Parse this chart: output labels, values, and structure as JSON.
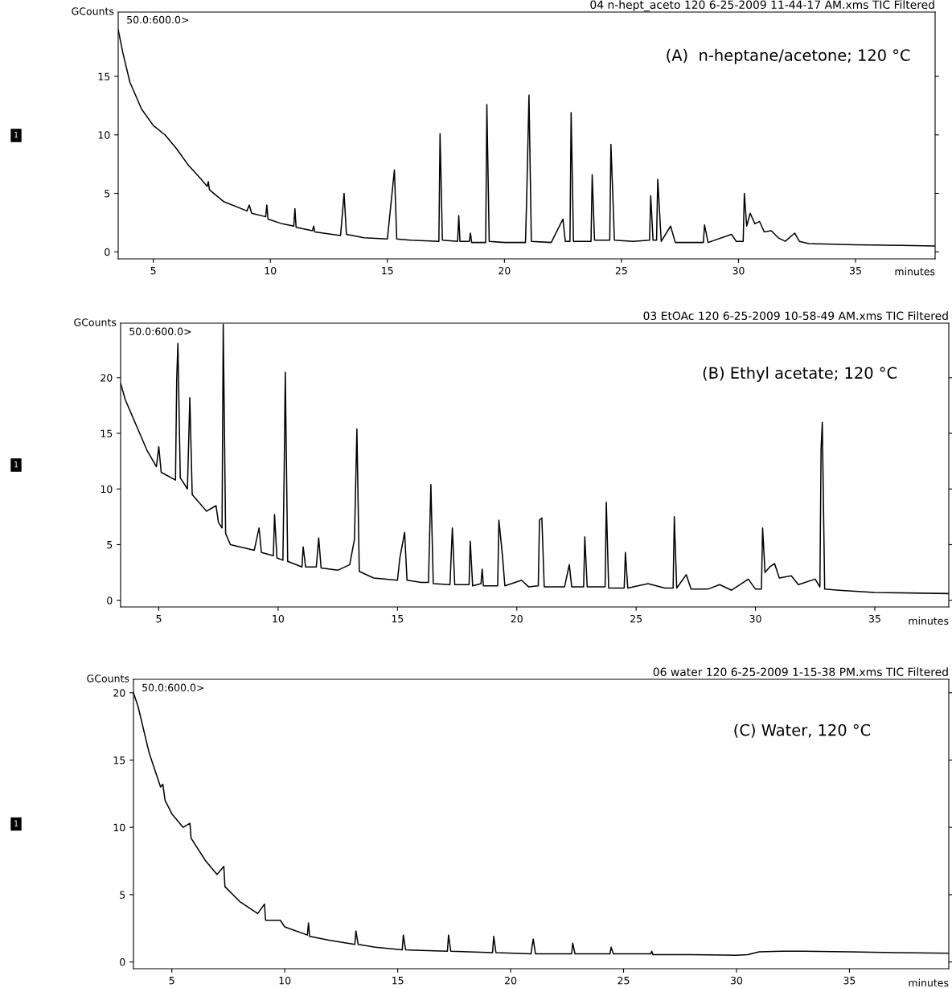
{
  "chart_data": [
    {
      "type": "line",
      "title": "04 n-hept_aceto 120 6-25-2009 11-44-17 AM.xms TIC Filtered",
      "xlabel": "minutes",
      "ylabel": "GCounts",
      "annotations": [
        "50.0:600.0>",
        "(A)  n-heptane/acetone; 120 °C",
        "1"
      ],
      "color": "#000000",
      "xlim": [
        3.5,
        38.4
      ],
      "ylim": [
        -0.6,
        20.5
      ],
      "xticks": [
        5,
        10,
        15,
        20,
        25,
        30,
        35
      ],
      "yticks": [
        0,
        5,
        10,
        15
      ],
      "x": [
        3.5,
        3.7,
        4,
        4.5,
        5,
        5.5,
        6,
        6.5,
        7,
        7.3,
        7.35,
        7.4,
        8,
        9,
        9.1,
        9.2,
        9.8,
        9.85,
        9.9,
        10.5,
        11,
        11.05,
        11.1,
        11.8,
        11.85,
        11.9,
        13,
        13.15,
        13.25,
        14,
        15,
        15.3,
        15.4,
        16,
        17.2,
        17.25,
        17.35,
        18,
        18.05,
        18.1,
        18.5,
        18.55,
        18.6,
        19.2,
        19.25,
        19.35,
        20,
        20.9,
        20.95,
        21.05,
        21.15,
        22,
        22.5,
        22.6,
        22.8,
        22.85,
        22.95,
        23.7,
        23.75,
        23.85,
        24.5,
        24.55,
        24.7,
        25.5,
        26.2,
        26.25,
        26.35,
        26.5,
        26.55,
        26.7,
        27.1,
        27.3,
        28.5,
        28.55,
        28.7,
        29.7,
        29.9,
        30.2,
        30.25,
        30.35,
        30.5,
        30.7,
        30.9,
        31.1,
        31.4,
        31.7,
        32,
        32.4,
        32.6,
        33,
        35,
        37,
        38.4
      ],
      "values": [
        19,
        17,
        14.5,
        12.2,
        10.8,
        10,
        8.8,
        7.4,
        6.3,
        5.6,
        6.0,
        5.3,
        4.3,
        3.5,
        4.0,
        3.3,
        3.0,
        4.0,
        2.8,
        2.4,
        2.2,
        3.7,
        2.1,
        1.8,
        2.2,
        1.7,
        1.4,
        5.0,
        1.5,
        1.2,
        1.1,
        7.0,
        1.1,
        1.0,
        0.9,
        10.1,
        1.0,
        0.9,
        3.1,
        0.9,
        0.9,
        1.6,
        0.8,
        0.8,
        12.6,
        0.9,
        0.8,
        0.8,
        4.5,
        13.4,
        0.9,
        0.8,
        2.8,
        0.9,
        0.9,
        11.9,
        0.9,
        0.9,
        6.6,
        1.0,
        1.0,
        9.2,
        1.0,
        0.9,
        1.0,
        4.8,
        1.0,
        1.0,
        6.2,
        0.9,
        2.2,
        0.8,
        0.8,
        2.3,
        0.8,
        1.5,
        0.9,
        0.9,
        5.0,
        2.2,
        3.3,
        2.4,
        2.6,
        1.7,
        1.8,
        1.2,
        0.9,
        1.6,
        0.9,
        0.7,
        0.6,
        0.55,
        0.5
      ]
    },
    {
      "type": "line",
      "title": "03 EtOAc 120 6-25-2009 10-58-49 AM.xms TIC Filtered",
      "xlabel": "minutes",
      "ylabel": "GCounts",
      "annotations": [
        "50.0:600.0>",
        "(B) Ethyl acetate; 120 °C",
        "1"
      ],
      "color": "#000000",
      "xlim": [
        3.4,
        38.1
      ],
      "ylim": [
        -0.6,
        24.9
      ],
      "xticks": [
        5,
        10,
        15,
        20,
        25,
        30,
        35
      ],
      "yticks": [
        0,
        5,
        10,
        15,
        20
      ],
      "x": [
        3.4,
        3.6,
        4,
        4.5,
        4.9,
        5.0,
        5.1,
        5.7,
        5.75,
        5.8,
        5.9,
        6.2,
        6.3,
        6.4,
        7,
        7.4,
        7.5,
        7.65,
        7.7,
        7.8,
        8,
        9,
        9.2,
        9.3,
        9.8,
        9.85,
        9.95,
        10.2,
        10.25,
        10.3,
        10.4,
        11,
        11.05,
        11.15,
        11.6,
        11.7,
        11.8,
        12.5,
        13,
        13.2,
        13.3,
        13.4,
        14,
        15,
        15.1,
        15.3,
        15.4,
        16,
        16.3,
        16.4,
        16.5,
        17.2,
        17.3,
        17.4,
        18,
        18.05,
        18.15,
        18.5,
        18.55,
        18.6,
        19.2,
        19.25,
        19.4,
        19.5,
        20.2,
        20.5,
        20.9,
        20.95,
        21.05,
        21.15,
        22,
        22.2,
        22.3,
        22.8,
        22.85,
        22.95,
        23.7,
        23.75,
        23.85,
        24.5,
        24.55,
        24.65,
        25.5,
        26.2,
        26.55,
        26.6,
        26.7,
        27.1,
        27.3,
        28,
        28.5,
        29,
        29.7,
        30,
        30.25,
        30.3,
        30.4,
        30.6,
        30.8,
        31,
        31.5,
        31.8,
        32.5,
        32.7,
        32.75,
        32.8,
        32.9,
        33.5,
        35,
        38.1
      ],
      "values": [
        19.5,
        18,
        16,
        13.5,
        12,
        13.8,
        11.5,
        10.8,
        19.8,
        23.1,
        11,
        10,
        18.2,
        9.5,
        8,
        8.5,
        7,
        6.5,
        24.8,
        6,
        5,
        4.5,
        6.5,
        4.3,
        4,
        7.7,
        3.8,
        3.6,
        11,
        20.5,
        3.5,
        3,
        4.8,
        3,
        3,
        5.6,
        2.9,
        2.7,
        3.2,
        5.5,
        15.4,
        2.6,
        2,
        1.8,
        3.8,
        6.1,
        1.8,
        1.6,
        1.6,
        10.4,
        1.5,
        1.4,
        6.5,
        1.4,
        1.4,
        5.3,
        1.3,
        1.5,
        2.8,
        1.3,
        1.3,
        7.2,
        4,
        1.3,
        1.8,
        1.2,
        1.3,
        7.2,
        7.4,
        1.2,
        1.2,
        3.2,
        1.2,
        1.2,
        5.7,
        1.2,
        1.2,
        8.8,
        1.1,
        1.1,
        4.3,
        1.1,
        1.5,
        1.1,
        1.1,
        7.5,
        1.1,
        2.3,
        1.0,
        1.0,
        1.4,
        0.9,
        1.9,
        1.0,
        1.0,
        6.5,
        2.5,
        3.0,
        3.3,
        2.0,
        2.2,
        1.4,
        1.9,
        1.2,
        13.7,
        16.0,
        1.0,
        0.9,
        0.7,
        0.6
      ]
    },
    {
      "type": "line",
      "title": "06 water 120 6-25-2009 1-15-38 PM.xms TIC Filtered",
      "xlabel": "minutes",
      "ylabel": "GCounts",
      "annotations": [
        "50.0:600.0>",
        "(C) Water, 120 °C",
        "1"
      ],
      "color": "#000000",
      "xlim": [
        3.3,
        39.4
      ],
      "ylim": [
        -0.5,
        21
      ],
      "xticks": [
        5,
        10,
        15,
        20,
        25,
        30,
        35
      ],
      "yticks": [
        0,
        5,
        10,
        15,
        20
      ],
      "x": [
        3.3,
        3.5,
        4,
        4.5,
        4.6,
        4.7,
        5,
        5.5,
        5.8,
        5.85,
        6.5,
        7,
        7.3,
        7.35,
        8,
        8.8,
        9.1,
        9.15,
        9.6,
        9.8,
        10,
        11,
        11.05,
        11.1,
        12,
        13.1,
        13.15,
        13.25,
        14,
        15.2,
        15.25,
        15.35,
        17.2,
        17.25,
        17.35,
        19.2,
        19.25,
        19.35,
        20.9,
        21,
        21.1,
        22.7,
        22.75,
        22.85,
        24.4,
        24.45,
        24.55,
        26.2,
        26.25,
        26.3,
        28,
        30,
        30.5,
        31,
        32,
        33,
        35,
        37,
        39.4
      ],
      "values": [
        20,
        19,
        15.5,
        13,
        13.2,
        12,
        11,
        10,
        10.3,
        9.2,
        7.5,
        6.5,
        7.1,
        5.6,
        4.5,
        3.6,
        4.3,
        3.1,
        3.1,
        3.1,
        2.6,
        2.0,
        2.9,
        1.9,
        1.6,
        1.3,
        2.3,
        1.3,
        1.1,
        0.9,
        2.0,
        0.9,
        0.8,
        2.0,
        0.8,
        0.7,
        1.9,
        0.7,
        0.6,
        1.7,
        0.6,
        0.6,
        1.4,
        0.6,
        0.6,
        1.1,
        0.6,
        0.6,
        0.8,
        0.55,
        0.55,
        0.5,
        0.55,
        0.75,
        0.8,
        0.8,
        0.75,
        0.7,
        0.65
      ]
    }
  ]
}
